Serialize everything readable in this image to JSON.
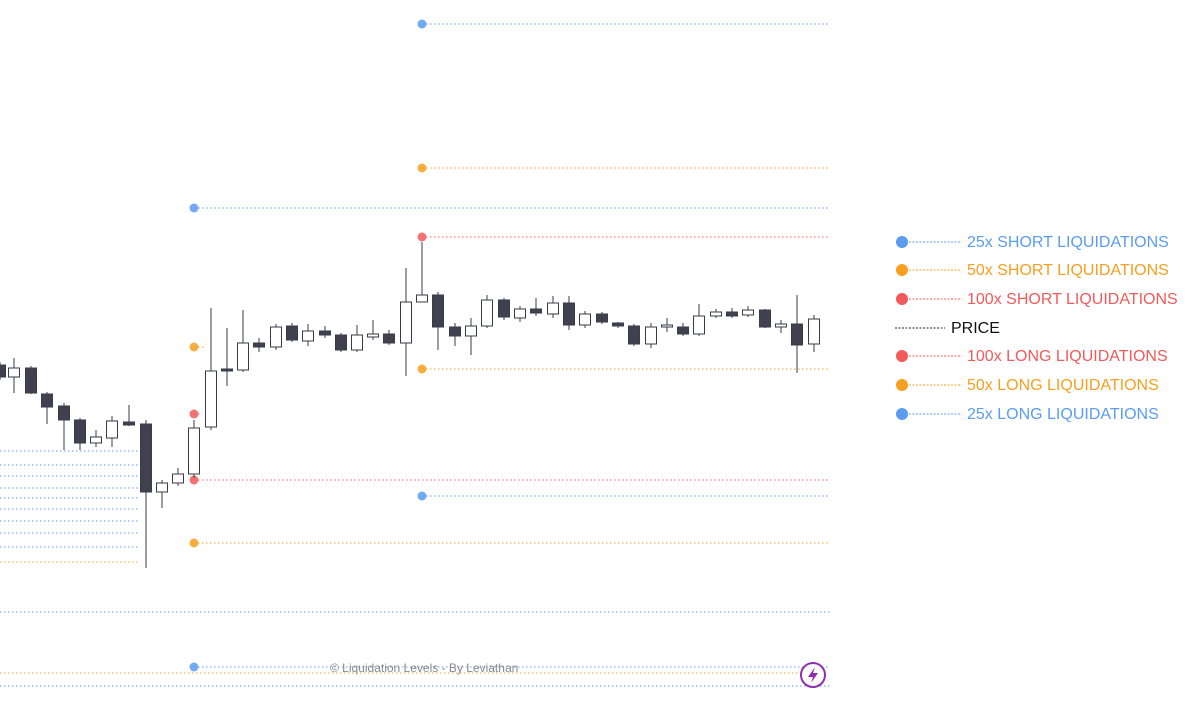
{
  "legend": {
    "items": [
      {
        "label": "25x SHORT LIQUIDATIONS",
        "color": "#5b9cf0"
      },
      {
        "label": "50x SHORT LIQUIDATIONS",
        "color": "#f5a020"
      },
      {
        "label": "100x SHORT LIQUIDATIONS",
        "color": "#f05a5a"
      },
      {
        "label": "PRICE",
        "color": "#222222"
      },
      {
        "label": "100x LONG LIQUIDATIONS",
        "color": "#f05a5a"
      },
      {
        "label": "50x LONG LIQUIDATIONS",
        "color": "#f5a020"
      },
      {
        "label": "25x LONG LIQUIDATIONS",
        "color": "#5b9cf0"
      }
    ]
  },
  "watermark": "© Liquidation Levels - By Leviathan"
}
